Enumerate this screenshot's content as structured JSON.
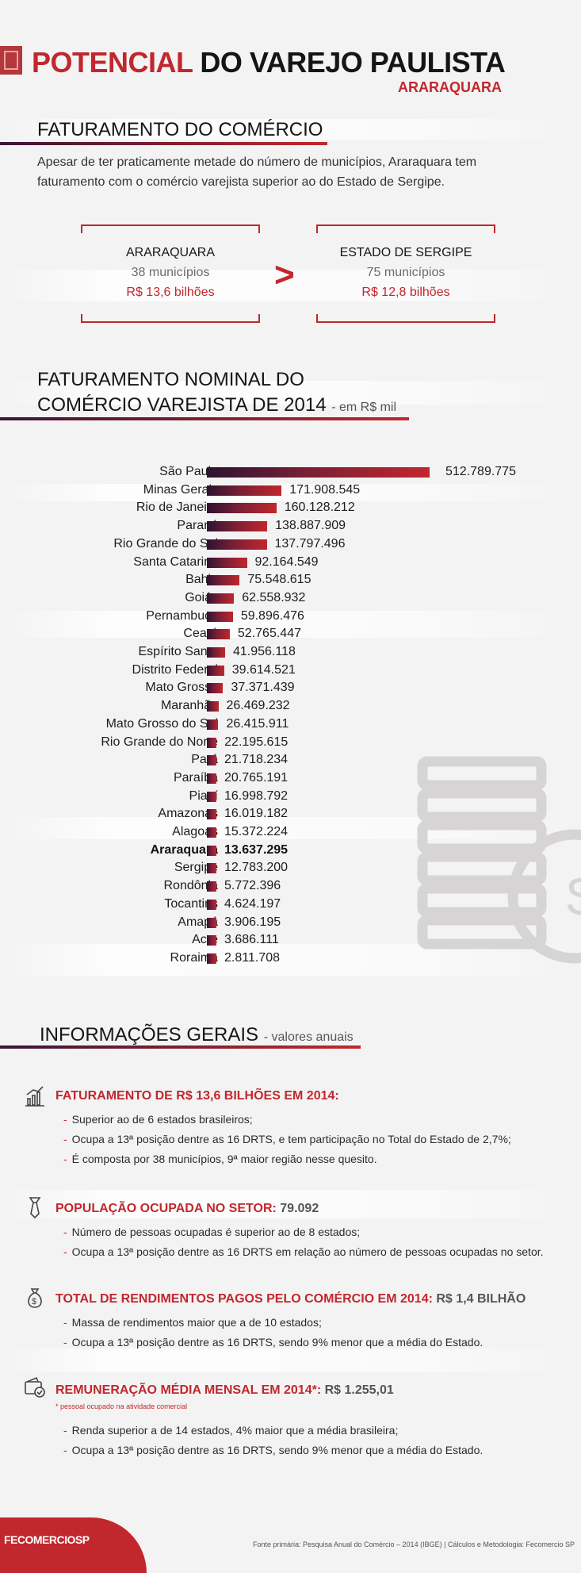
{
  "header": {
    "title_highlight": "POTENCIAL",
    "title_rest": "DO VAREJO PAULISTA",
    "subtitle": "ARARAQUARA"
  },
  "faturamento": {
    "heading": "FATURAMENTO DO COMÉRCIO",
    "text_line1": "Apesar de ter praticamente metade do número de municípios, Araraquara tem",
    "text_line2": "faturamento com o comércio varejista superior ao do Estado de Sergipe.",
    "left": {
      "name": "ARARAQUARA",
      "municipios": "38 municípios",
      "valor": "R$ 13,6 bilhões"
    },
    "comparator": ">",
    "right": {
      "name": "ESTADO DE SERGIPE",
      "municipios": "75 municípios",
      "valor": "R$ 12,8 bilhões"
    }
  },
  "nominal": {
    "heading_line1": "FATURAMENTO NOMINAL DO",
    "heading_line2": "COMÉRCIO VAREJISTA DE 2014",
    "unit": "- em R$ mil"
  },
  "chart_data": {
    "type": "bar",
    "orientation": "horizontal",
    "highlight": "Araraquara",
    "categories": [
      "São Paulo",
      "Minas Gerais",
      "Rio de Janeiro",
      "Paraná",
      "Rio Grande do Sul",
      "Santa Catarina",
      "Bahia",
      "Goiás",
      "Pernambuco",
      "Ceará",
      "Espírito Santo",
      "Distrito Federal",
      "Mato Grosso",
      "Maranhão",
      "Mato Grosso do Sul",
      "Rio Grande do Norte",
      "Pará",
      "Paraíba",
      "Piauí",
      "Amazonas",
      "Alagoas",
      "Araraquara",
      "Sergipe",
      "Rondônia",
      "Tocantins",
      "Amapá",
      "Acre",
      "Roraima"
    ],
    "values": [
      512789775,
      171908545,
      160128212,
      138887909,
      137797496,
      92164549,
      75548615,
      62558932,
      59896476,
      52765447,
      41956118,
      39614521,
      37371439,
      26469232,
      26415911,
      22195615,
      21718234,
      20765191,
      16998792,
      16019182,
      15372224,
      13637295,
      12783200,
      5772396,
      4624197,
      3906195,
      3686111,
      2811708
    ],
    "value_labels": [
      "512.789.775",
      "171.908.545",
      "160.128.212",
      "138.887.909",
      "137.797.496",
      "92.164.549",
      "75.548.615",
      "62.558.932",
      "59.896.476",
      "52.765.447",
      "41.956.118",
      "39.614.521",
      "37.371.439",
      "26.469.232",
      "26.415.911",
      "22.195.615",
      "21.718.234",
      "20.765.191",
      "16.998.792",
      "16.019.182",
      "15.372.224",
      "13.637.295",
      "12.783.200",
      "5.772.396",
      "4.624.197",
      "3.906.195",
      "3.686.111",
      "2.811.708"
    ]
  },
  "info": {
    "heading": "INFORMAÇÕES GERAIS",
    "heading_sub": "- valores anuais",
    "s1": {
      "title": "FATURAMENTO DE R$ 13,6 BILHÕES EM 2014:",
      "b1": "Superior ao de 6 estados brasileiros;",
      "b2": "Ocupa a 13ª posição dentre as 16 DRTS, e tem participação no Total do Estado de 2,7%;",
      "b3": "É composta por 38 municípios, 9ª maior região nesse quesito."
    },
    "s2": {
      "title": "POPULAÇÃO OCUPADA NO SETOR:",
      "value": "79.092",
      "b1": "Número de pessoas ocupadas é superior ao de 8 estados;",
      "b2": "Ocupa a 13ª posição dentre as 16 DRTS em relação ao número de pessoas ocupadas no setor."
    },
    "s3": {
      "title": "TOTAL DE RENDIMENTOS PAGOS PELO COMÉRCIO EM 2014:",
      "value": "R$ 1,4 BILHÃO",
      "b1": "Massa de rendimentos maior que a de 10 estados;",
      "b2": "Ocupa a 13ª posição dentre as 16 DRTS, sendo 9% menor que a média do Estado."
    },
    "s4": {
      "title": "REMUNERAÇÃO MÉDIA MENSAL EM 2014*:",
      "value": "R$ 1.255,01",
      "note": "* pessoal ocupado na atividade comercial",
      "b1": "Renda superior a de 14 estados, 4% maior que a média brasileira;",
      "b2": "Ocupa a 13ª posição dentre as 16 DRTS, sendo 9% menor que a média do Estado."
    }
  },
  "footer": {
    "logo": "FECOMERCIOSP",
    "source": "Fonte primária: Pesquisa Anual do Comércio – 2014 (IBGE) | Cálculos e Metodologia: Fecomercio SP"
  },
  "colors": {
    "accent": "#c1272d",
    "dark": "#2d1330",
    "text": "#1d1d1d"
  },
  "icons": [
    "bar-chart-icon",
    "tie-icon",
    "money-bag-icon",
    "wallet-check-icon",
    "coins-watermark-icon"
  ]
}
